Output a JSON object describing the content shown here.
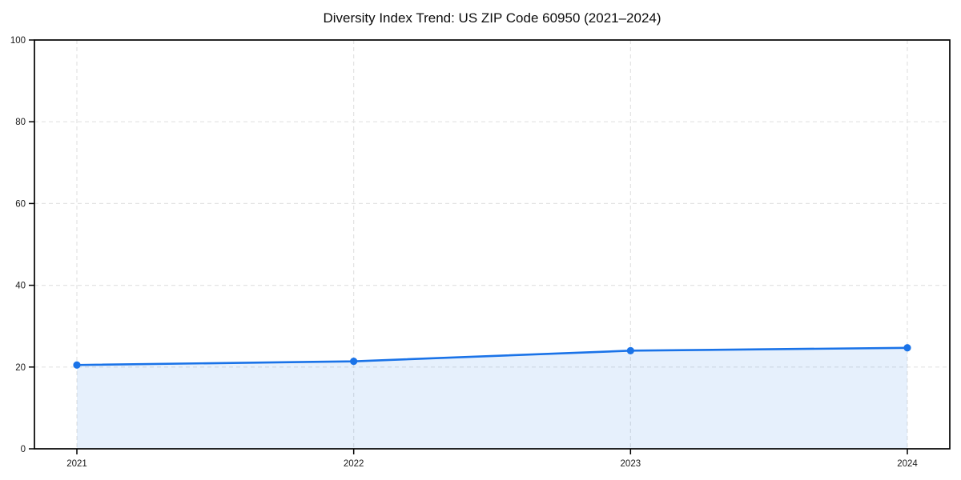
{
  "chart_data": {
    "type": "area",
    "title": "Diversity Index Trend: US ZIP Code 60950 (2021–2024)",
    "x": [
      2021,
      2022,
      2023,
      2024
    ],
    "x_tick_labels": [
      "2021",
      "2022",
      "2023",
      "2024"
    ],
    "series": [
      {
        "name": "Diversity Index",
        "values": [
          20.5,
          21.4,
          24.0,
          24.7
        ]
      }
    ],
    "xlabel": "",
    "ylabel": "",
    "ylim": [
      0,
      100
    ],
    "y_ticks": [
      0,
      20,
      40,
      60,
      80,
      100
    ],
    "grid": true,
    "legend": "none",
    "colors": {
      "line": "#1a73e8",
      "marker": "#1a73e8",
      "fill": "rgba(26,115,232,0.11)",
      "grid": "#e3e3e3",
      "spine": "#000000",
      "tick_label": "#1a1a1a",
      "background": "#ffffff"
    }
  }
}
